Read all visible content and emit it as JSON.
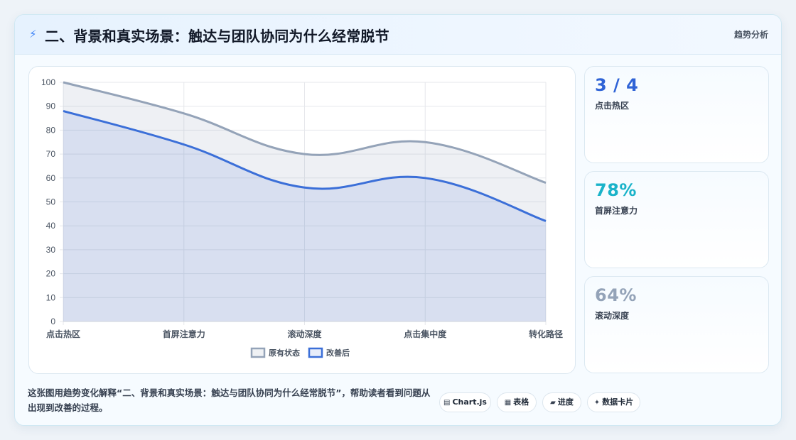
{
  "header": {
    "title": "二、背景和真实场景：触达与团队协同为什么经常脱节",
    "tag": "趋势分析",
    "icon": "lightning-icon"
  },
  "chart_data": {
    "type": "area",
    "categories": [
      "点击热区",
      "首屏注意力",
      "滚动深度",
      "点击集中度",
      "转化路径"
    ],
    "series": [
      {
        "name": "原有状态",
        "values": [
          100,
          87,
          70,
          75,
          58
        ],
        "color": "#94a3b8"
      },
      {
        "name": "改善后",
        "values": [
          88,
          74,
          56,
          60,
          42
        ],
        "color": "#3b6fd8"
      }
    ],
    "ylim": [
      0,
      100
    ],
    "yticks": [
      0,
      10,
      20,
      30,
      40,
      50,
      60,
      70,
      80,
      90,
      100
    ],
    "grid": true,
    "legend_position": "bottom"
  },
  "stats": [
    {
      "value": "3 / 4",
      "label": "点击热区",
      "color": "#2f63d6"
    },
    {
      "value": "78%",
      "label": "首屏注意力",
      "color": "#1ab3c9"
    },
    {
      "value": "64%",
      "label": "滚动深度",
      "color": "#94a3b8"
    }
  ],
  "caption": "这张图用趋势变化解释“二、背景和真实场景：触达与团队协同为什么经常脱节”，帮助读者看到问题从出现到改善的过程。",
  "chips": [
    {
      "icon": "chart-icon",
      "glyph": "▤",
      "label": "Chart.js"
    },
    {
      "icon": "table-icon",
      "glyph": "▦",
      "label": "表格"
    },
    {
      "icon": "progress-icon",
      "glyph": "▰",
      "label": "进度"
    },
    {
      "icon": "sparkle-icon",
      "glyph": "✦",
      "label": "数据卡片"
    }
  ]
}
